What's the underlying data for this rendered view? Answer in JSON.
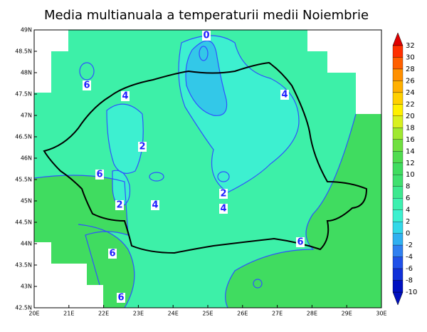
{
  "title": "Media multianuala a temperaturii medii Noiembrie",
  "map": {
    "lon_ticks": [
      "20E",
      "21E",
      "22E",
      "23E",
      "24E",
      "25E",
      "26E",
      "27E",
      "28E",
      "29E",
      "30E"
    ],
    "lat_ticks": [
      "49N",
      "48.5N",
      "48N",
      "47.5N",
      "47N",
      "46.5N",
      "46N",
      "45.5N",
      "45N",
      "44.5N",
      "44N",
      "43.5N",
      "43N",
      "42.5N"
    ],
    "contour_labels": [
      "0",
      "6",
      "4",
      "4",
      "2",
      "6",
      "2",
      "4",
      "2",
      "4",
      "6",
      "6",
      "6"
    ],
    "colorbar": {
      "labels": [
        32,
        30,
        28,
        26,
        24,
        22,
        20,
        18,
        16,
        14,
        12,
        10,
        8,
        6,
        4,
        2,
        0,
        -2,
        -4,
        -6,
        -8,
        -10
      ],
      "colors": [
        "#e00000",
        "#ff3000",
        "#ff6000",
        "#ff9000",
        "#ffb000",
        "#ffd000",
        "#fff000",
        "#d8f020",
        "#a0e830",
        "#70e040",
        "#50dc50",
        "#40dc60",
        "#40e070",
        "#3de890",
        "#3df0b0",
        "#3df0d0",
        "#33d8e8",
        "#30b0f0",
        "#3080f0",
        "#2050e8",
        "#1030d8",
        "#0010c0"
      ]
    }
  }
}
